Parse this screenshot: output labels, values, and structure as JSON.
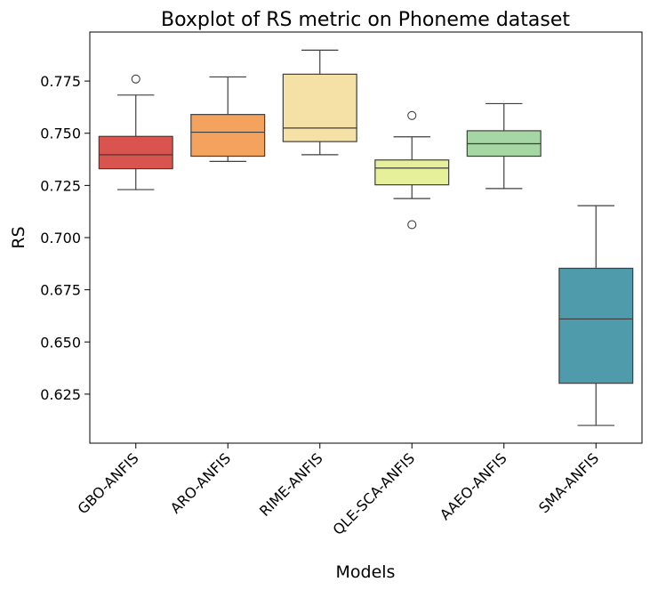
{
  "chart_data": {
    "type": "box",
    "title": "Boxplot of RS metric on Phoneme dataset",
    "xlabel": "Models",
    "ylabel": "RS",
    "ylim": [
      0.6015,
      0.7985
    ],
    "yticks": [
      0.625,
      0.65,
      0.675,
      0.7,
      0.725,
      0.75,
      0.775
    ],
    "ytick_labels": [
      "0.625",
      "0.650",
      "0.675",
      "0.700",
      "0.725",
      "0.750",
      "0.775"
    ],
    "grid": false,
    "categories": [
      "GBO-ANFIS",
      "ARO-ANFIS",
      "RIME-ANFIS",
      "QLE-SCA-ANFIS",
      "AAEO-ANFIS",
      "SMA-ANFIS"
    ],
    "boxes": [
      {
        "category": "GBO-ANFIS",
        "whisker_low": 0.723,
        "q1": 0.733,
        "median": 0.7397,
        "q3": 0.7485,
        "whisker_high": 0.7683,
        "outliers": [
          0.776
        ],
        "color": "#d9534f"
      },
      {
        "category": "ARO-ANFIS",
        "whisker_low": 0.7365,
        "q1": 0.739,
        "median": 0.7505,
        "q3": 0.759,
        "whisker_high": 0.777,
        "outliers": [],
        "color": "#f3a35d"
      },
      {
        "category": "RIME-ANFIS",
        "whisker_low": 0.7397,
        "q1": 0.746,
        "median": 0.7525,
        "q3": 0.7783,
        "whisker_high": 0.7898,
        "outliers": [],
        "color": "#f5e0a5"
      },
      {
        "category": "QLE-SCA-ANFIS",
        "whisker_low": 0.7187,
        "q1": 0.7253,
        "median": 0.7333,
        "q3": 0.7372,
        "whisker_high": 0.7483,
        "outliers": [
          0.7585,
          0.7062
        ],
        "color": "#e6f09a"
      },
      {
        "category": "AAEO-ANFIS",
        "whisker_low": 0.7235,
        "q1": 0.739,
        "median": 0.745,
        "q3": 0.7512,
        "whisker_high": 0.7642,
        "outliers": [],
        "color": "#a6d6a3"
      },
      {
        "category": "SMA-ANFIS",
        "whisker_low": 0.61,
        "q1": 0.6302,
        "median": 0.661,
        "q3": 0.6853,
        "whisker_high": 0.7153,
        "outliers": [],
        "color": "#4f9aab"
      }
    ]
  }
}
